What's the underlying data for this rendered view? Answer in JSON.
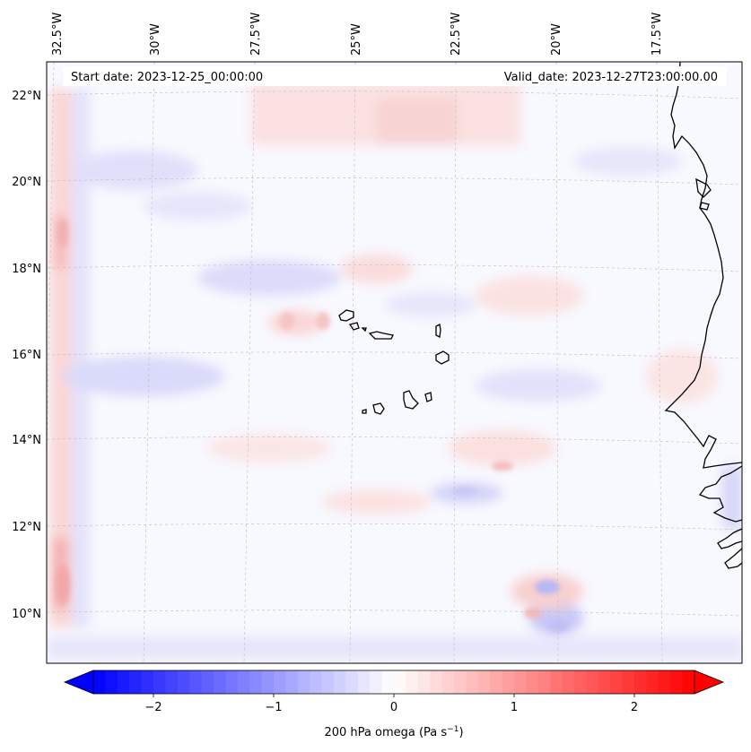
{
  "map": {
    "title_left": "Start date: 2023-12-25_00:00:00",
    "title_right": "Valid_date: 2023-12-27T23:00:00.00",
    "lon_labels": [
      "32.5°W",
      "30°W",
      "27.5°W",
      "25°W",
      "22.5°W",
      "20°W",
      "17.5°W"
    ],
    "lat_labels": [
      "22°N",
      "20°N",
      "18°N",
      "16°N",
      "14°N",
      "12°N",
      "10°N"
    ],
    "field_variable": "200 hPa omega"
  },
  "colorbar": {
    "label_main": "200 hPa omega (Pa s",
    "label_sup": "−1",
    "label_end": ")",
    "ticks": [
      "−2",
      "−1",
      "0",
      "1",
      "2"
    ],
    "min": -2.75,
    "max": 2.75,
    "colormap": "bwr",
    "low_color": "#0000ff",
    "mid_color": "#ffffff",
    "high_color": "#ff0000"
  }
}
